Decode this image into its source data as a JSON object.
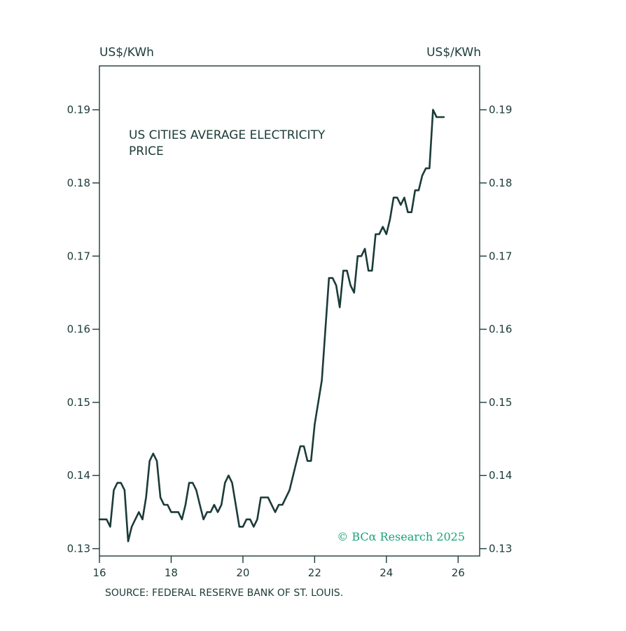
{
  "chart_data": {
    "type": "line",
    "title": "US CITIES AVERAGE ELECTRICITY",
    "title_line2": "PRICE",
    "y_unit_left": "US$/KWh",
    "y_unit_right": "US$/KWh",
    "source": "SOURCE: FEDERAL RESERVE BANK OF ST. LOUIS.",
    "credit": "© BCα Research 2025",
    "credit_color": "#1aa37a",
    "line_color": "#1b3b38",
    "xlim": [
      16,
      26.6
    ],
    "ylim": [
      0.129,
      0.196
    ],
    "x_ticks": [
      "16",
      "18",
      "20",
      "22",
      "24",
      "26"
    ],
    "y_ticks": [
      "0.13",
      "0.14",
      "0.15",
      "0.16",
      "0.17",
      "0.18",
      "0.19"
    ],
    "grid": false,
    "series": [
      {
        "x": [
          16.0,
          16.1,
          16.2,
          16.3,
          16.4,
          16.5,
          16.6,
          16.7,
          16.8,
          16.9,
          17.0,
          17.1,
          17.2,
          17.3,
          17.4,
          17.5,
          17.6,
          17.7,
          17.8,
          17.9,
          18.0,
          18.1,
          18.2,
          18.3,
          18.4,
          18.5,
          18.6,
          18.7,
          18.8,
          18.9,
          19.0,
          19.1,
          19.2,
          19.3,
          19.4,
          19.5,
          19.6,
          19.7,
          19.8,
          19.9,
          20.0,
          20.1,
          20.2,
          20.3,
          20.4,
          20.5,
          20.6,
          20.7,
          20.8,
          20.9,
          21.0,
          21.1,
          21.2,
          21.3,
          21.4,
          21.5,
          21.6,
          21.7,
          21.8,
          21.9,
          22.0,
          22.1,
          22.2,
          22.3,
          22.4,
          22.5,
          22.6,
          22.7,
          22.8,
          22.9,
          23.0,
          23.1,
          23.2,
          23.3,
          23.4,
          23.5,
          23.6,
          23.7,
          23.8,
          23.9,
          24.0,
          24.1,
          24.2,
          24.3,
          24.4,
          24.5,
          24.6,
          24.7,
          24.8,
          24.9,
          25.0,
          25.1,
          25.2,
          25.3,
          25.4,
          25.5,
          25.6
        ],
        "y": [
          0.134,
          0.134,
          0.134,
          0.133,
          0.138,
          0.139,
          0.139,
          0.138,
          0.131,
          0.133,
          0.134,
          0.135,
          0.134,
          0.137,
          0.142,
          0.143,
          0.142,
          0.137,
          0.136,
          0.136,
          0.135,
          0.135,
          0.135,
          0.134,
          0.136,
          0.139,
          0.139,
          0.138,
          0.136,
          0.134,
          0.135,
          0.135,
          0.136,
          0.135,
          0.136,
          0.139,
          0.14,
          0.139,
          0.136,
          0.133,
          0.133,
          0.134,
          0.134,
          0.133,
          0.134,
          0.137,
          0.137,
          0.137,
          0.136,
          0.135,
          0.136,
          0.136,
          0.137,
          0.138,
          0.14,
          0.142,
          0.144,
          0.144,
          0.142,
          0.142,
          0.147,
          0.15,
          0.153,
          0.16,
          0.167,
          0.167,
          0.166,
          0.163,
          0.168,
          0.168,
          0.166,
          0.165,
          0.17,
          0.17,
          0.171,
          0.168,
          0.168,
          0.173,
          0.173,
          0.174,
          0.173,
          0.175,
          0.178,
          0.178,
          0.177,
          0.178,
          0.176,
          0.176,
          0.179,
          0.179,
          0.181,
          0.182,
          0.182,
          0.19,
          0.189,
          0.189,
          0.189
        ]
      }
    ]
  }
}
